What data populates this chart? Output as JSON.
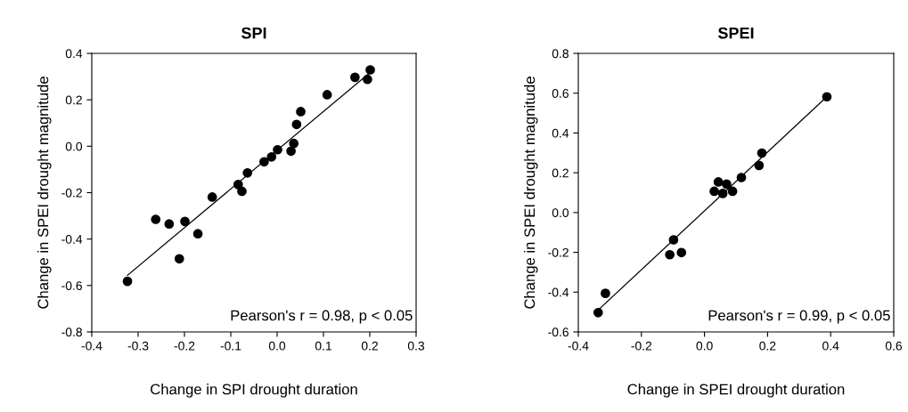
{
  "chart_data": [
    {
      "type": "scatter",
      "title": "SPI",
      "xlabel": "Change in SPI drought duration",
      "ylabel": "Change in SPEI drought magnitude",
      "xlim": [
        -0.4,
        0.3
      ],
      "xticks": [
        -0.4,
        -0.3,
        -0.2,
        -0.1,
        {
          "value": 0,
          "label": "0.0"
        },
        0.1,
        0.2,
        0.3
      ],
      "ylim": [
        -0.8,
        0.4
      ],
      "yticks": [
        -0.8,
        -0.6,
        -0.4,
        -0.2,
        {
          "value": 0,
          "label": "0.0"
        },
        0.2,
        0.4
      ],
      "grid": false,
      "legend": false,
      "annotations": [
        "Pearson's r = 0.98, p < 0.05"
      ],
      "series": [
        {
          "color": "#000000",
          "marker": "circle",
          "x": [
            -0.323,
            -0.262,
            -0.233,
            -0.199,
            -0.211,
            -0.171,
            -0.14,
            -0.084,
            -0.076,
            -0.064,
            -0.028,
            -0.012,
            0.001,
            0.03,
            0.036,
            0.042,
            0.051,
            0.108,
            0.168,
            0.195,
            0.201
          ],
          "values": [
            -0.582,
            -0.315,
            -0.335,
            -0.324,
            -0.485,
            -0.377,
            -0.219,
            -0.165,
            -0.194,
            -0.115,
            -0.067,
            -0.046,
            -0.015,
            -0.021,
            0.012,
            0.094,
            0.149,
            0.222,
            0.297,
            0.288,
            0.329
          ]
        },
        {
          "type": "line",
          "color": "#000000",
          "line_style": "solid",
          "x": [
            -0.323,
            0.198
          ],
          "values": [
            -0.556,
            0.313
          ]
        }
      ]
    },
    {
      "type": "scatter",
      "title": "SPEI",
      "xlabel": "Change in SPEI drought duration",
      "ylabel": "Change in SPEI drought magnitude",
      "xlim": [
        -0.4,
        0.6
      ],
      "xticks": [
        -0.4,
        -0.2,
        {
          "value": 0,
          "label": "0.0"
        },
        0.2,
        0.4,
        0.6
      ],
      "ylim": [
        -0.6,
        0.8
      ],
      "yticks": [
        -0.6,
        -0.4,
        -0.2,
        {
          "value": 0,
          "label": "0.0"
        },
        0.2,
        0.4,
        0.6,
        0.8
      ],
      "grid": false,
      "legend": false,
      "annotations": [
        "Pearson's r = 0.99, p < 0.05"
      ],
      "series": [
        {
          "color": "#000000",
          "marker": "circle",
          "x": [
            -0.337,
            -0.314,
            -0.11,
            -0.098,
            -0.073,
            0.031,
            0.044,
            0.058,
            0.07,
            0.089,
            0.117,
            0.173,
            0.182,
            0.388
          ],
          "values": [
            -0.503,
            -0.406,
            -0.212,
            -0.137,
            -0.201,
            0.107,
            0.154,
            0.096,
            0.143,
            0.107,
            0.176,
            0.237,
            0.299,
            0.582
          ]
        },
        {
          "type": "line",
          "color": "#000000",
          "line_style": "solid",
          "x": [
            -0.337,
            0.388
          ],
          "values": [
            -0.49,
            0.582
          ]
        }
      ]
    }
  ]
}
